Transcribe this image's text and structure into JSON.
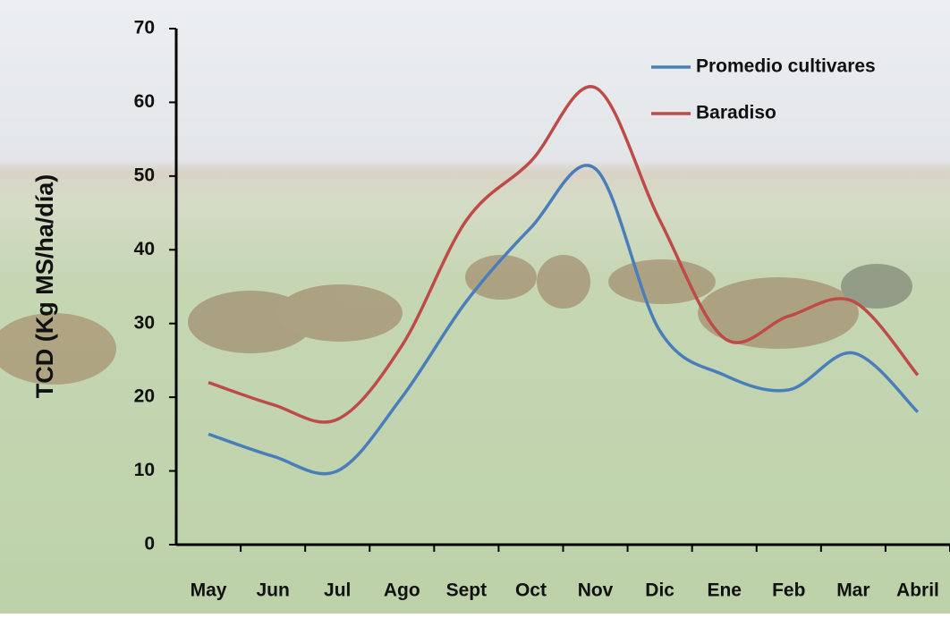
{
  "chart_data": {
    "type": "line",
    "y_label": "TCD (Kg MS/ha/día)",
    "categories": [
      "May",
      "Jun",
      "Jul",
      "Ago",
      "Sept",
      "Oct",
      "Nov",
      "Dic",
      "Ene",
      "Feb",
      "Mar",
      "Abril"
    ],
    "series": [
      {
        "name": "Promedio cultivares",
        "color": "#4a7ebb",
        "values": [
          15,
          12,
          10,
          20,
          33,
          43,
          51,
          29,
          23,
          21,
          26,
          18
        ]
      },
      {
        "name": "Baradiso",
        "color": "#be4b48",
        "values": [
          22,
          19,
          17,
          27,
          44,
          52,
          62,
          44,
          28,
          31,
          33,
          23
        ]
      }
    ],
    "ylim": [
      0,
      70
    ],
    "yticks": [
      0,
      10,
      20,
      30,
      40,
      50,
      60,
      70
    ],
    "legend": "upper right",
    "smooth": true
  }
}
